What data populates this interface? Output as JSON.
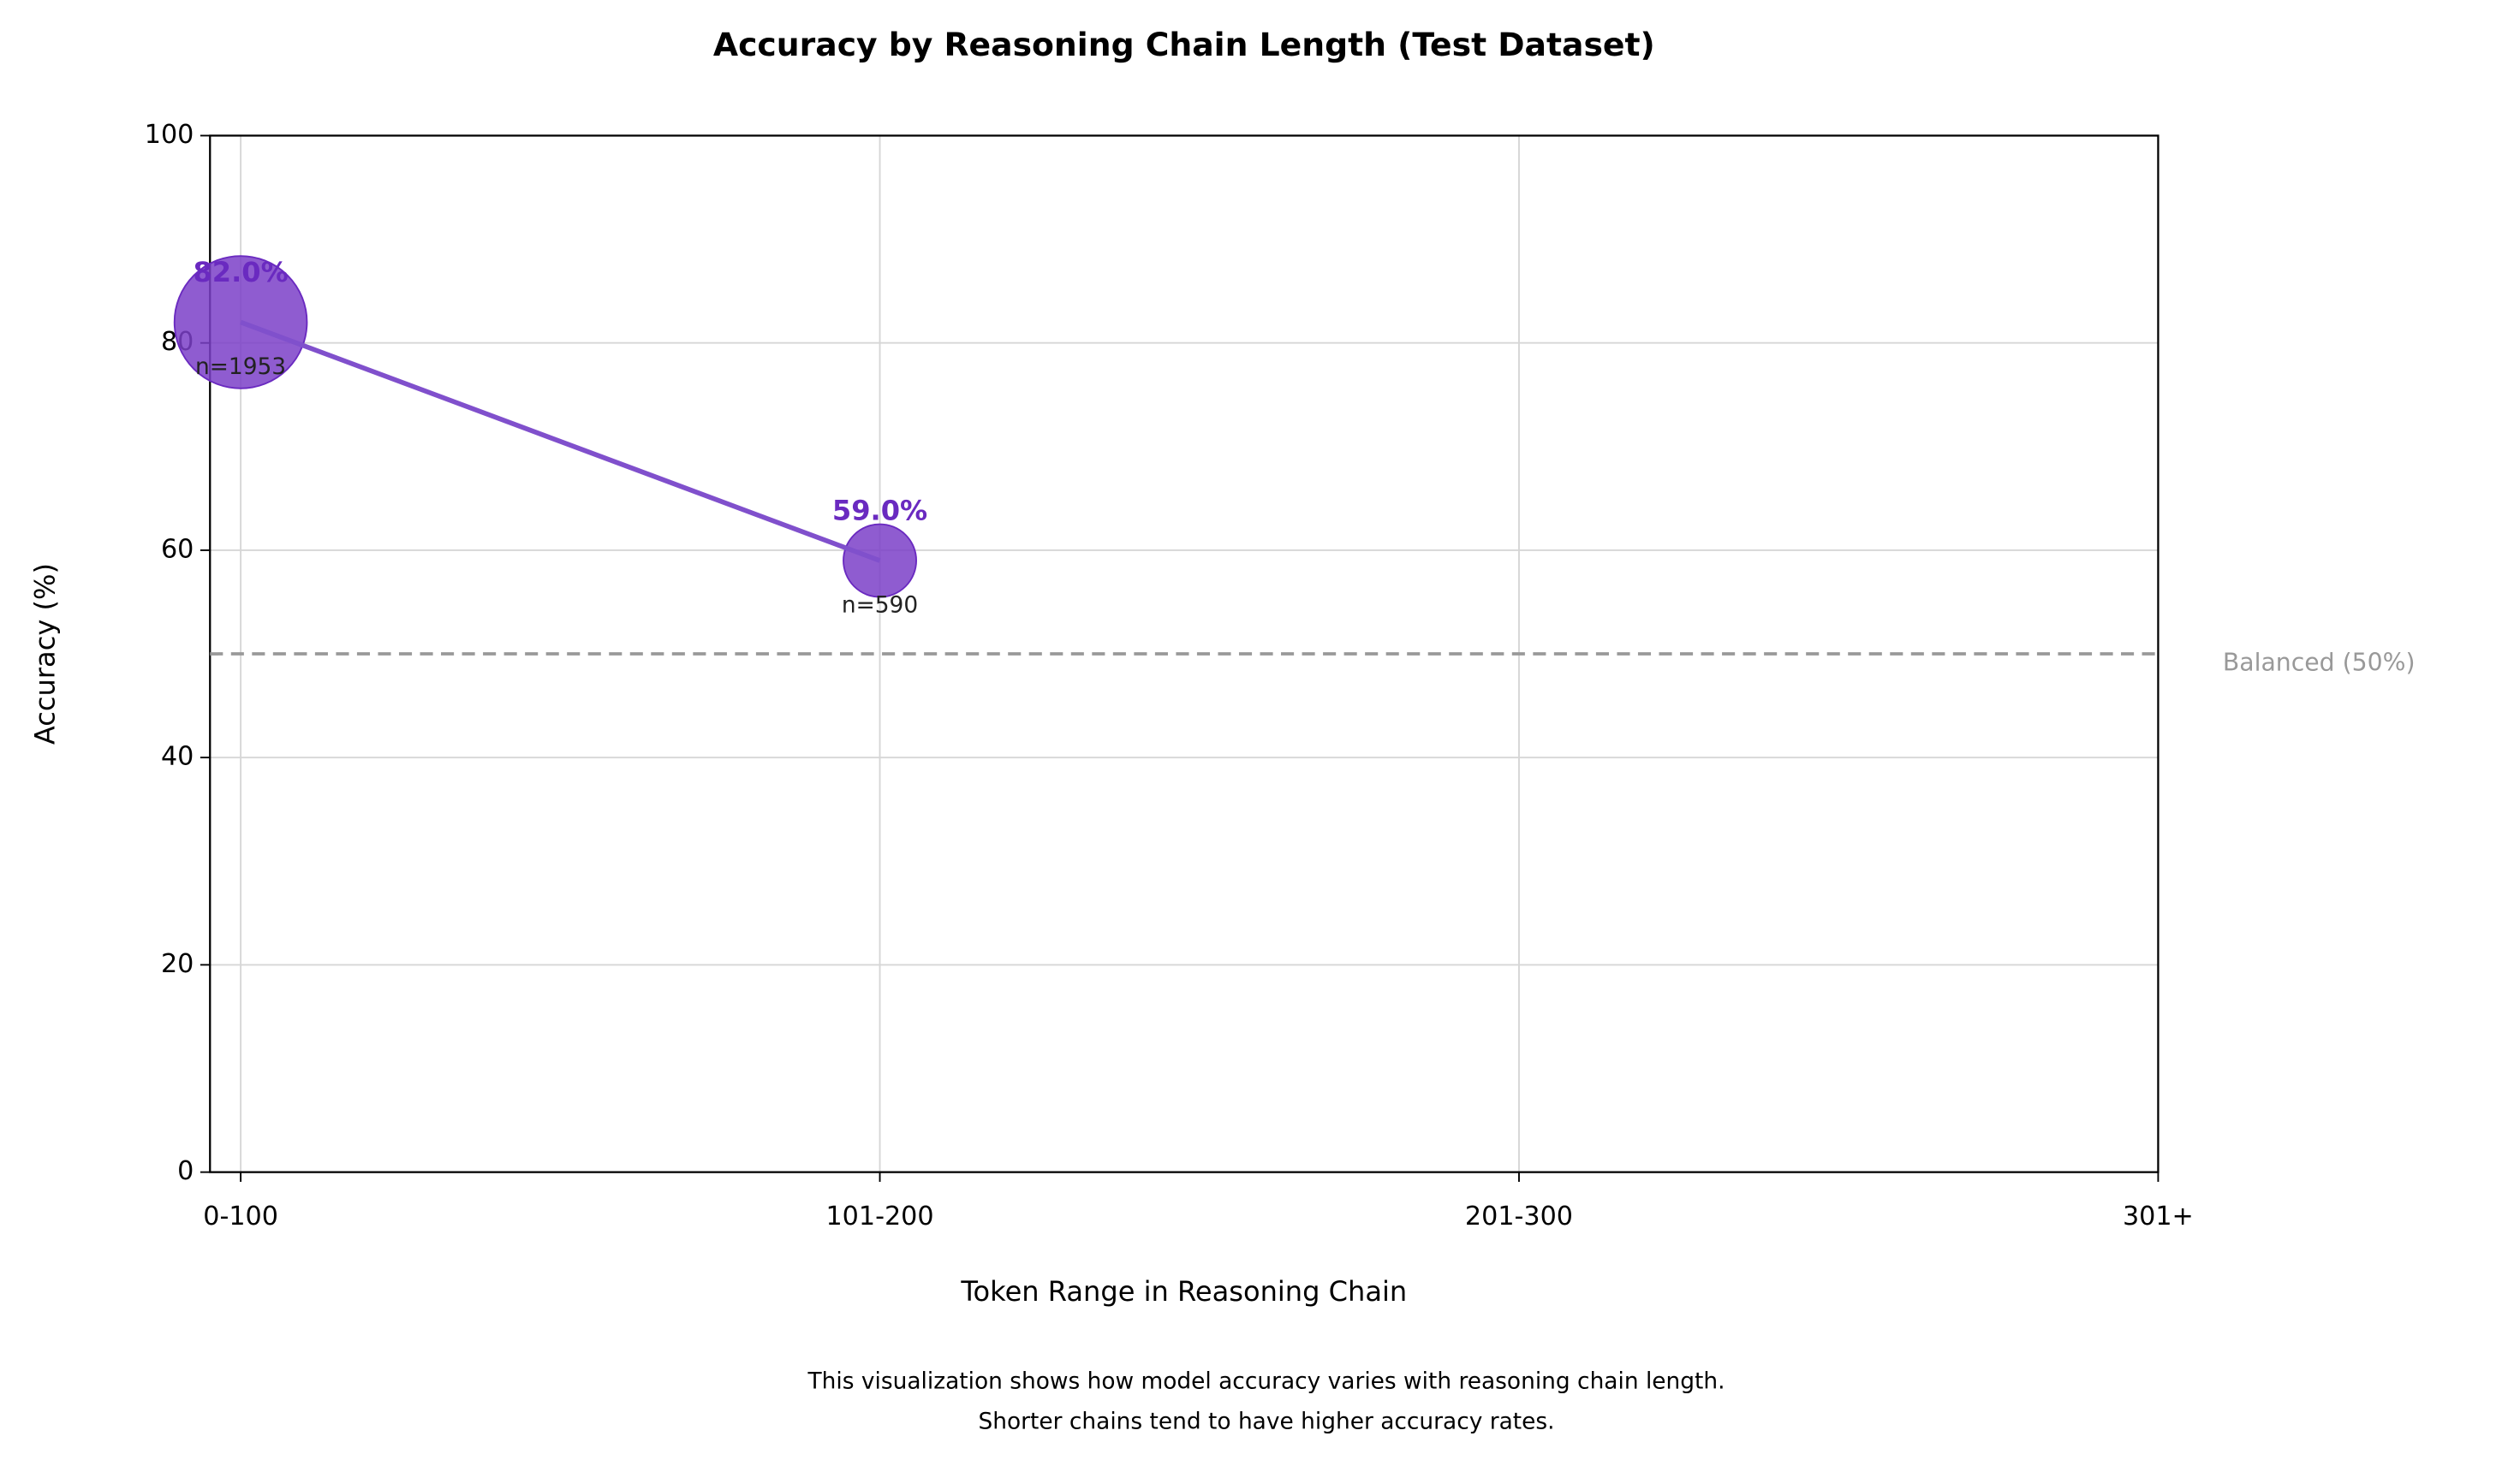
{
  "chart_data": {
    "type": "bubble",
    "title": "Accuracy by Reasoning Chain Length (Test Dataset)",
    "x_label": "Token Range in Reasoning Chain",
    "y_label": "Accuracy (%)",
    "categories": [
      "0-100",
      "101-200",
      "201-300",
      "301+"
    ],
    "series": [
      {
        "color": "#7b3fc8",
        "values": [
          82,
          59,
          null,
          null
        ],
        "value_labels": [
          "82.0%",
          "59.0%",
          null,
          null
        ],
        "sizes": [
          1953,
          590,
          null,
          null
        ],
        "size_labels": [
          "n=1953",
          "n=590",
          null,
          null
        ]
      }
    ],
    "ylim": [
      0,
      100
    ],
    "yticks": [
      0,
      20,
      40,
      60,
      80,
      100
    ],
    "grid": true,
    "reference_line": {
      "value": 50,
      "label": "Balanced (50%)",
      "color": "#999999"
    },
    "caption": [
      "This visualization shows how model accuracy varies with reasoning chain length.",
      "Shorter chains tend to have higher accuracy rates."
    ]
  }
}
